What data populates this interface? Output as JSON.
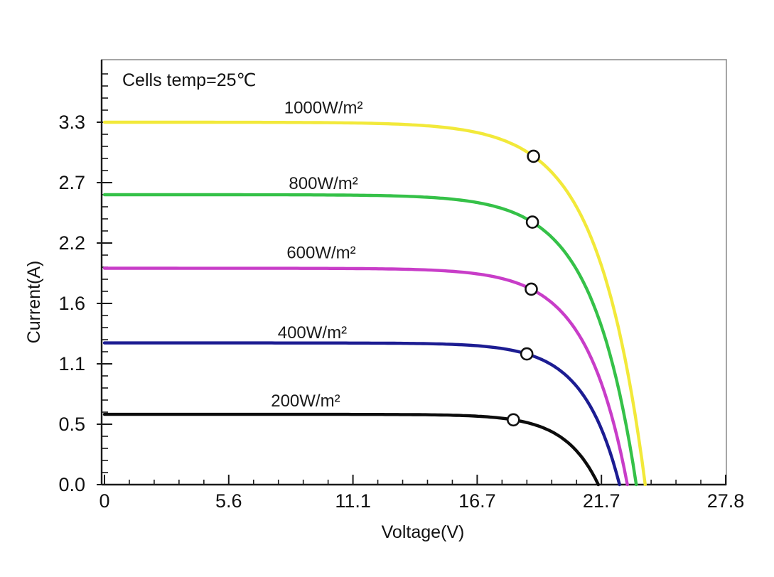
{
  "page": {
    "background": "#ffffff"
  },
  "chart_data": {
    "type": "line",
    "title_annotation": "Cells temp=25℃",
    "xlabel": "Voltage(V)",
    "ylabel": "Current(A)",
    "x_tick_labels": [
      "0",
      "5.6",
      "11.1",
      "16.7",
      "21.7",
      "27.8"
    ],
    "y_tick_labels": [
      "0.0",
      "0.5",
      "1.1",
      "1.6",
      "2.2",
      "2.7",
      "3.3"
    ],
    "xlim": [
      0,
      27.8
    ],
    "ylim": [
      0,
      3.87
    ],
    "grid": false,
    "legend_position": "inline-above-curves",
    "axis_color": "#1a1a1a",
    "frame_color": "#8f8f8f",
    "marker_style": {
      "shape": "open-circle",
      "fill": "#ffffff",
      "stroke": "#111111"
    },
    "series": [
      {
        "name": "1000W/m²",
        "irradiance_w_m2": 1000,
        "color": "#f2e93a",
        "isc": 3.3,
        "voc": 24.2,
        "mpp_marker": {
          "v": 19.2,
          "i": 2.99
        },
        "label_pos": {
          "v": 9.8,
          "i": 3.44
        }
      },
      {
        "name": "800W/m²",
        "irradiance_w_m2": 800,
        "color": "#35c148",
        "isc": 2.64,
        "voc": 23.8,
        "mpp_marker": {
          "v": 19.15,
          "i": 2.39
        },
        "label_pos": {
          "v": 9.8,
          "i": 2.75
        }
      },
      {
        "name": "600W/m²",
        "irradiance_w_m2": 600,
        "color": "#c83dc8",
        "isc": 1.97,
        "voc": 23.4,
        "mpp_marker": {
          "v": 19.1,
          "i": 1.78
        },
        "label_pos": {
          "v": 9.7,
          "i": 2.12
        }
      },
      {
        "name": "400W/m²",
        "irradiance_w_m2": 400,
        "color": "#1c1c92",
        "isc": 1.29,
        "voc": 23.05,
        "mpp_marker": {
          "v": 18.9,
          "i": 1.19
        },
        "label_pos": {
          "v": 9.3,
          "i": 1.39
        }
      },
      {
        "name": "200W/m²",
        "irradiance_w_m2": 200,
        "color": "#0c0c0c",
        "isc": 0.64,
        "voc": 22.1,
        "mpp_marker": {
          "v": 18.3,
          "i": 0.59
        },
        "label_pos": {
          "v": 9.0,
          "i": 0.77
        }
      }
    ]
  }
}
